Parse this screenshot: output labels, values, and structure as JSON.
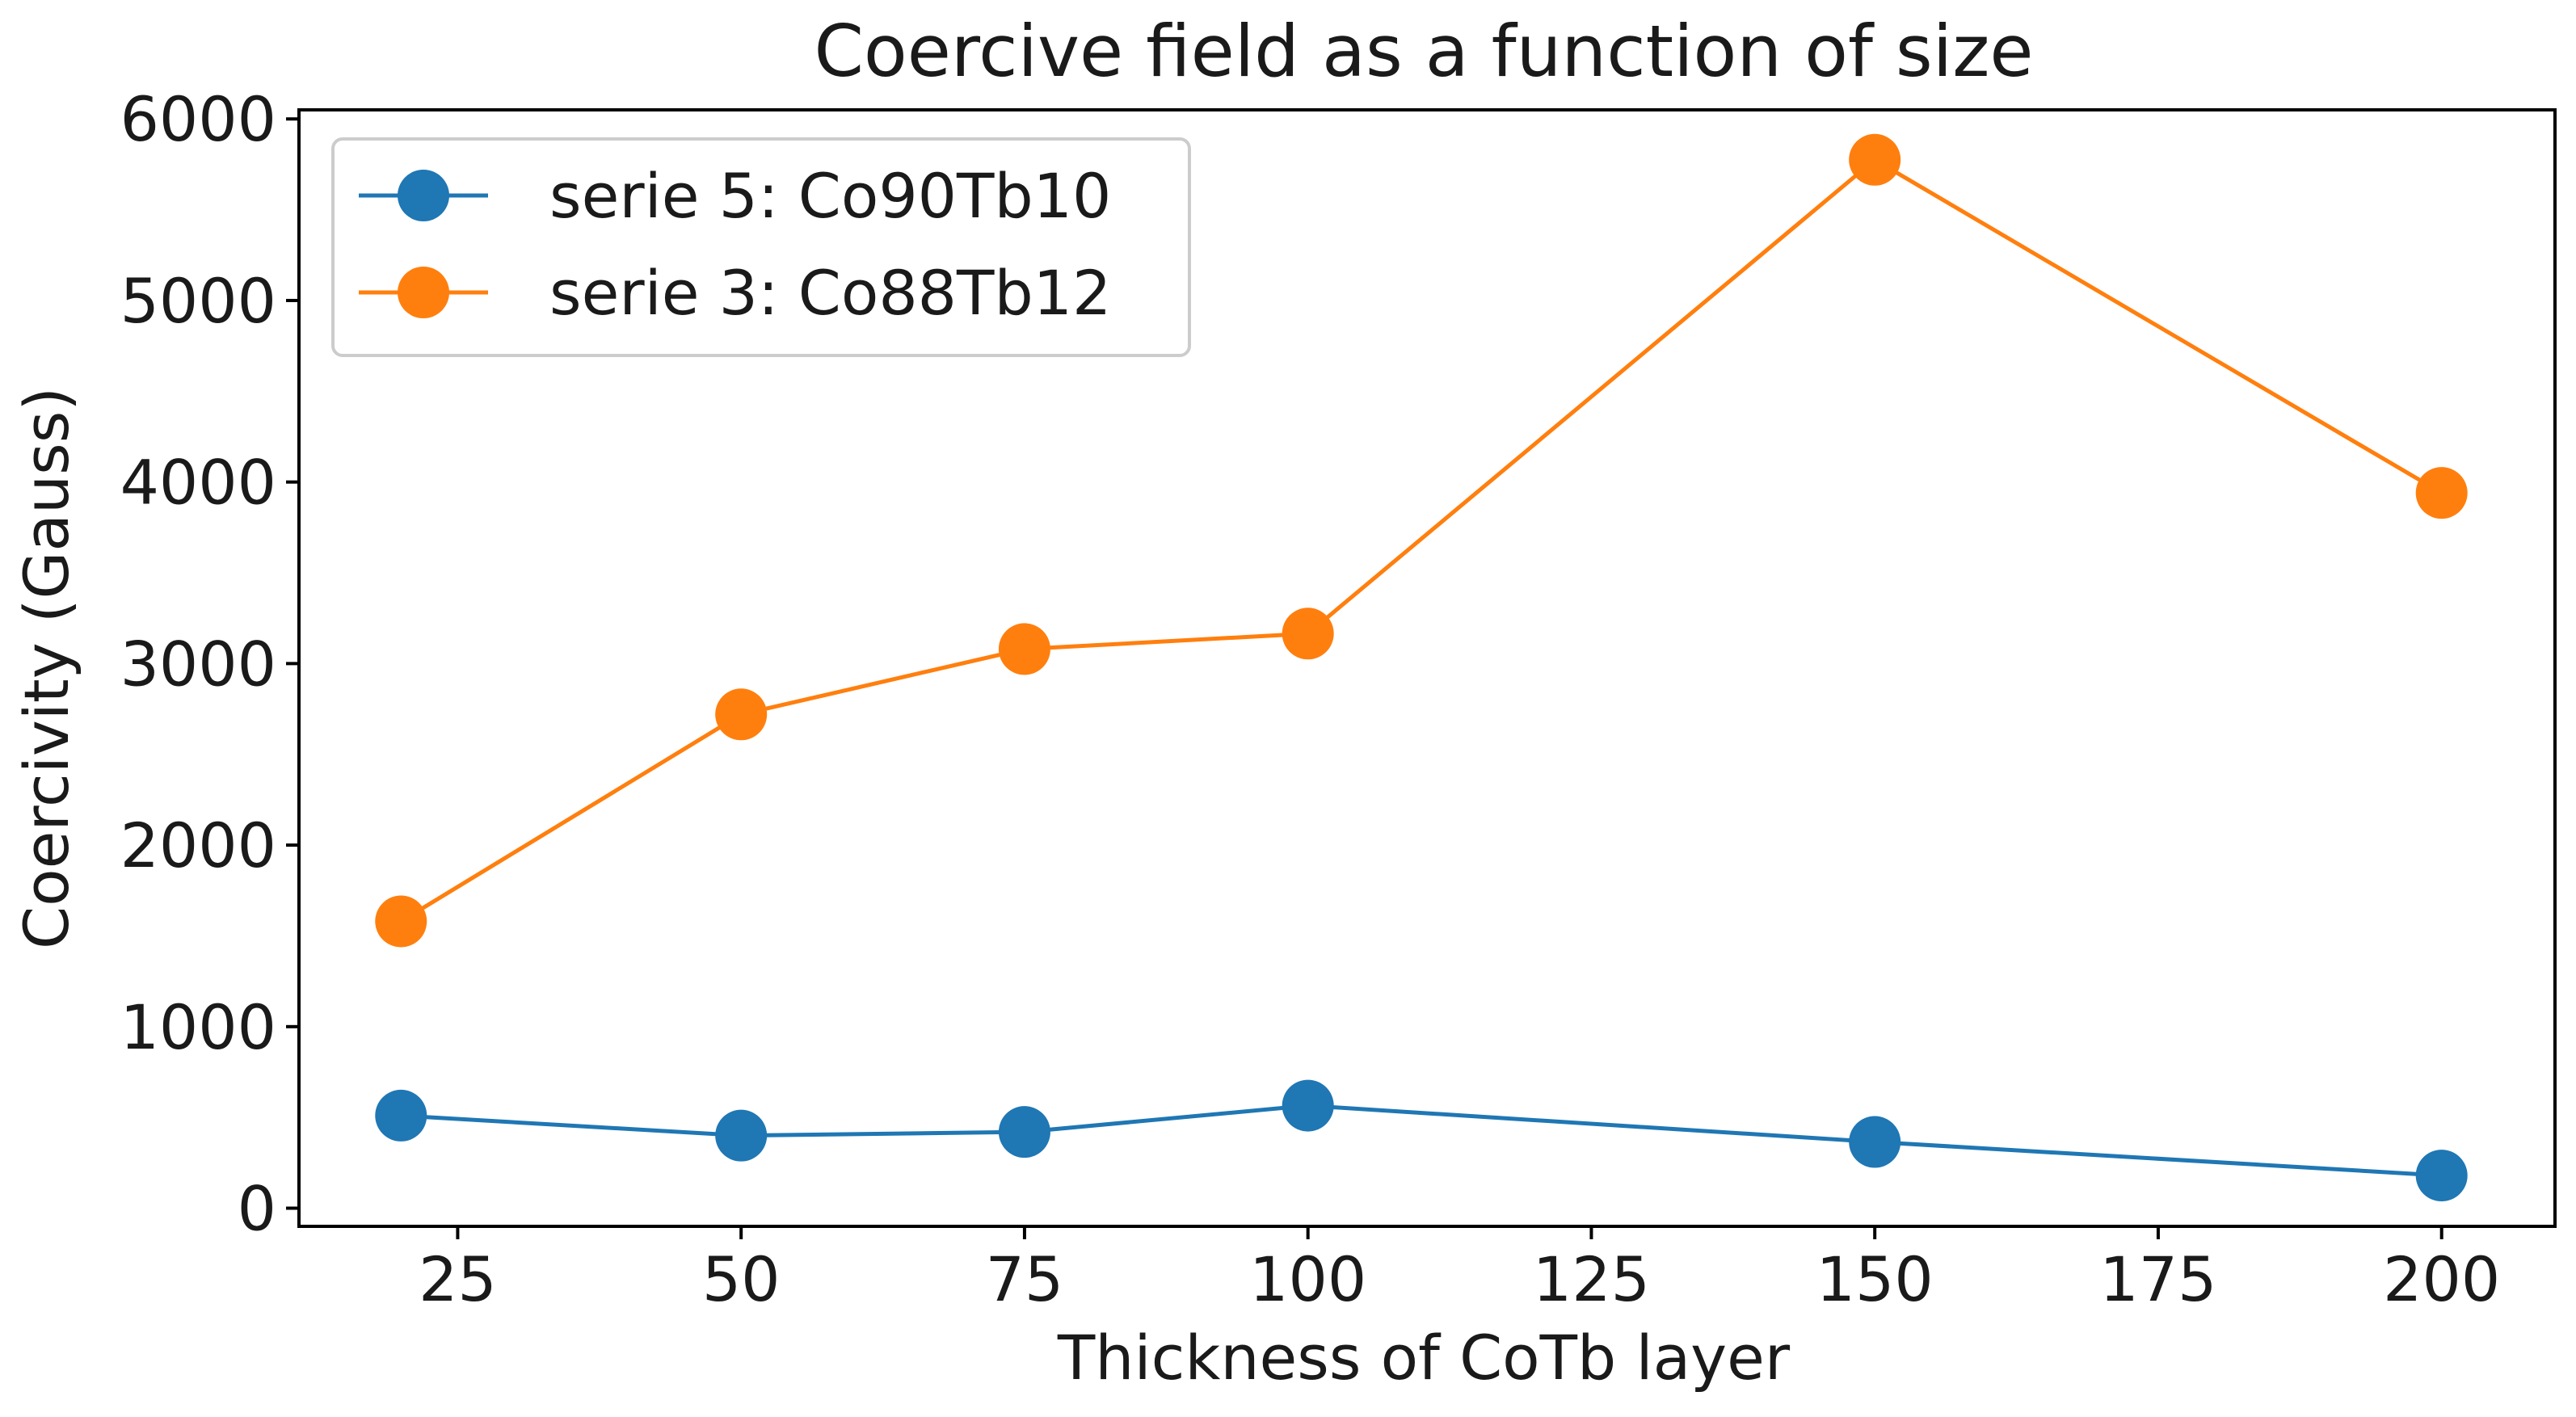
{
  "chart_data": {
    "type": "line",
    "title": "Coercive field as a function of size",
    "xlabel": "Thickness of CoTb layer",
    "ylabel": "Coercivity (Gauss)",
    "xlim": [
      11,
      210
    ],
    "ylim": [
      -100,
      6050
    ],
    "xticks": [
      25,
      50,
      75,
      100,
      125,
      150,
      175,
      200
    ],
    "yticks": [
      0,
      1000,
      2000,
      3000,
      4000,
      5000,
      6000
    ],
    "grid": false,
    "legend_position": "top-left",
    "x": [
      20,
      50,
      75,
      100,
      150,
      200
    ],
    "series": [
      {
        "name": "serie 5: Co90Tb10",
        "color": "#1f77b4",
        "values": [
          510,
          400,
          420,
          565,
          365,
          180
        ]
      },
      {
        "name": "serie 3: Co88Tb12",
        "color": "#ff7f0e",
        "values": [
          1580,
          2720,
          3080,
          3165,
          5775,
          3940
        ]
      }
    ]
  }
}
